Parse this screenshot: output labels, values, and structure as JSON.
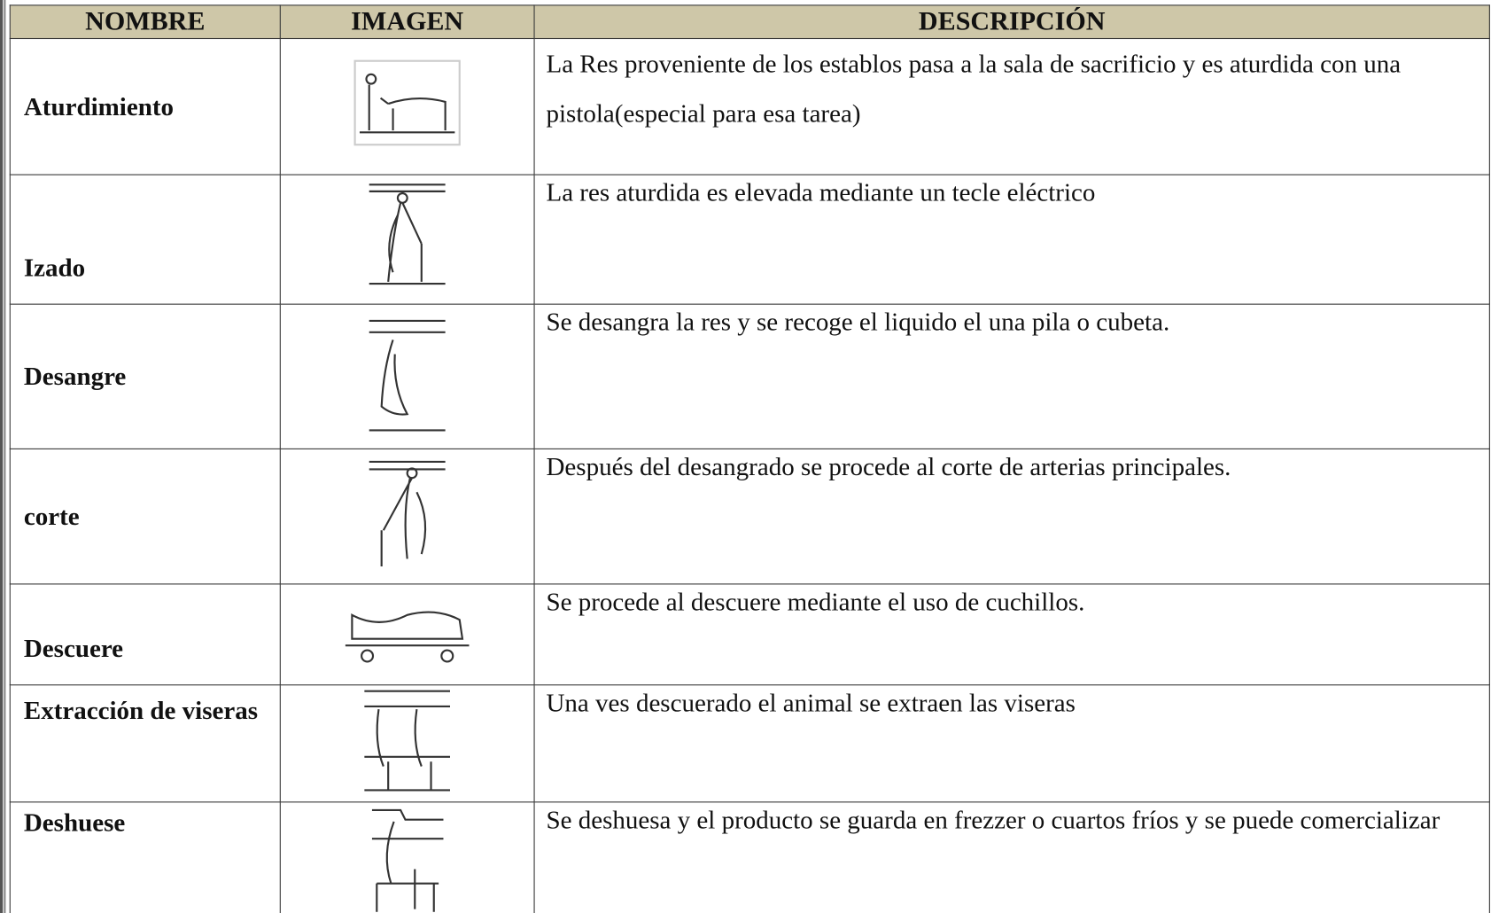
{
  "table": {
    "header": [
      "NOMBRE",
      "IMAGEN",
      "DESCRIPCIÓN"
    ],
    "rows": [
      {
        "name": "Aturdimiento",
        "description": "La Res proveniente de los establos pasa a la sala de sacrificio y es aturdida con una pistola(especial para esa tarea)"
      },
      {
        "name": "Izado",
        "description": "La res aturdida es elevada mediante un tecle eléctrico"
      },
      {
        "name": "Desangre",
        "description": "Se desangra la res y se recoge el liquido el una pila o cubeta."
      },
      {
        "name": "corte",
        "description": "Después del desangrado se procede al corte de arterias principales."
      },
      {
        "name": "Descuere",
        "description": "Se procede al descuere mediante el uso de cuchillos."
      },
      {
        "name": "Extracción de viseras",
        "description": "Una ves descuerado el animal se extraen las viseras"
      },
      {
        "name": "Deshuese",
        "description": "Se deshuesa y el producto se guarda en frezzer o cuartos fríos y se puede comercializar"
      }
    ]
  }
}
